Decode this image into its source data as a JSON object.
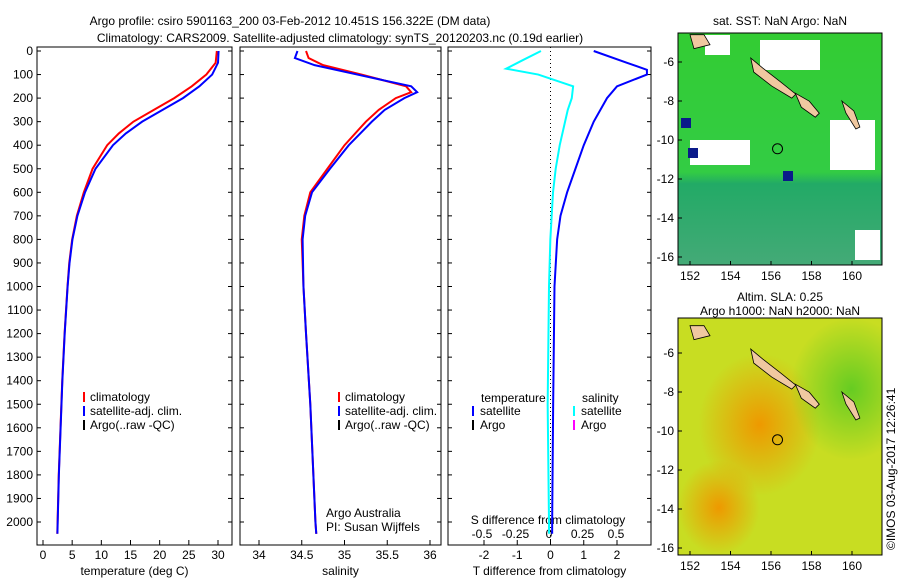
{
  "title": {
    "line1": "Argo profile: csiro 5901163_200 03-Feb-2012 10.451S 156.322E (DM data)",
    "line2": "Climatology: CARS2009. Satellite-adjusted climatology: synTS_20120203.nc (0.19d earlier)"
  },
  "colors": {
    "climatology": "#ff0000",
    "satellite": "#0000ff",
    "argo": "#000000",
    "sal_satellite": "#00ffff",
    "sal_argo": "#ff00ff"
  },
  "credit": {
    "institution": "Argo Australia",
    "pi": "PI: Susan Wijffels"
  },
  "stamp": "©IMOS 03-Aug-2017 12:26:41",
  "chart_data": [
    {
      "type": "line",
      "name": "temperature",
      "xlabel": "temperature (deg C)",
      "xlim": [
        -1,
        31
      ],
      "ylim": [
        0,
        2050
      ],
      "yticks": [
        0,
        100,
        200,
        300,
        400,
        500,
        600,
        700,
        800,
        900,
        1000,
        1100,
        1200,
        1300,
        1400,
        1500,
        1600,
        1700,
        1800,
        1900,
        2000
      ],
      "xticks": [
        0,
        5,
        10,
        15,
        20,
        25,
        30
      ],
      "legend": [
        "climatology",
        "satellite-adj. clim.",
        "Argo(..raw -QC)"
      ],
      "series": [
        {
          "name": "climatology",
          "depth": [
            0,
            50,
            100,
            150,
            200,
            250,
            300,
            350,
            400,
            500,
            600,
            700,
            800,
            900,
            1000,
            1200,
            1400,
            1600,
            1800,
            2000,
            2050
          ],
          "values": [
            29.8,
            29.6,
            28,
            25.5,
            22.5,
            19,
            15.5,
            13,
            11,
            8.5,
            7,
            5.8,
            5,
            4.5,
            4.2,
            3.7,
            3.3,
            3.0,
            2.7,
            2.5,
            2.45
          ]
        },
        {
          "name": "satellite-adj. clim.",
          "depth": [
            0,
            50,
            100,
            150,
            200,
            250,
            300,
            350,
            400,
            500,
            600,
            700,
            800,
            900,
            1000,
            1200,
            1400,
            1600,
            1800,
            2000,
            2050
          ],
          "values": [
            30.1,
            30,
            29,
            26.8,
            24,
            20.5,
            17,
            14.2,
            12,
            9,
            7.2,
            5.9,
            5.05,
            4.55,
            4.22,
            3.72,
            3.32,
            3.02,
            2.72,
            2.52,
            2.47
          ]
        }
      ]
    },
    {
      "type": "line",
      "name": "salinity",
      "xlabel": "salinity",
      "xlim": [
        33.7,
        36.1
      ],
      "ylim": [
        0,
        2050
      ],
      "xticks": [
        34,
        34.5,
        35,
        35.5,
        36
      ],
      "legend": [
        "climatology",
        "satellite-adj. clim.",
        "Argo(..raw -QC)"
      ],
      "series": [
        {
          "name": "climatology",
          "depth": [
            0,
            30,
            60,
            100,
            150,
            175,
            200,
            250,
            300,
            400,
            500,
            600,
            700,
            800,
            1000,
            1200,
            1500,
            2000,
            2050
          ],
          "values": [
            34.55,
            34.58,
            34.75,
            35.2,
            35.72,
            35.78,
            35.6,
            35.4,
            35.25,
            35.0,
            34.8,
            34.6,
            34.53,
            34.5,
            34.52,
            34.55,
            34.6,
            34.66,
            34.67
          ]
        },
        {
          "name": "satellite-adj. clim.",
          "depth": [
            0,
            30,
            60,
            100,
            150,
            175,
            200,
            250,
            300,
            400,
            500,
            600,
            700,
            800,
            1000,
            1200,
            1500,
            2000,
            2050
          ],
          "values": [
            34.45,
            34.42,
            34.65,
            35.15,
            35.78,
            35.85,
            35.7,
            35.47,
            35.32,
            35.05,
            34.83,
            34.62,
            34.54,
            34.51,
            34.52,
            34.55,
            34.6,
            34.66,
            34.67
          ]
        }
      ]
    },
    {
      "type": "line",
      "name": "difference",
      "xlabel": "T difference from climatology",
      "x2label": "S difference from climatology",
      "xlim": [
        -3,
        3
      ],
      "ylim": [
        0,
        2050
      ],
      "xticks": [
        -2,
        -1,
        0,
        1,
        2
      ],
      "x2ticks": [
        -0.5,
        -0.25,
        0,
        0.25,
        0.5
      ],
      "legend": {
        "temperature": "temperature",
        "salinity": "salinity",
        "satellite": "satellite",
        "argo": "Argo"
      },
      "series": [
        {
          "name": "temperature satellite",
          "depth": [
            0,
            50,
            80,
            100,
            150,
            200,
            250,
            300,
            400,
            500,
            600,
            700,
            800,
            1000,
            1500,
            2000,
            2050
          ],
          "values": [
            1.3,
            2.3,
            2.9,
            2.9,
            2.0,
            1.7,
            1.5,
            1.3,
            1.0,
            0.75,
            0.5,
            0.3,
            0.2,
            0.12,
            0.08,
            0.05,
            0.05
          ]
        },
        {
          "name": "salinity satellite",
          "depth": [
            0,
            40,
            75,
            100,
            150,
            200,
            250,
            300,
            400,
            500,
            600,
            800,
            1000,
            1500,
            2000,
            2050
          ],
          "values": [
            -0.06,
            -0.2,
            -0.32,
            -0.08,
            0.18,
            0.17,
            0.14,
            0.12,
            0.08,
            0.05,
            0.03,
            0.01,
            0.0,
            -0.01,
            0.0,
            0.0
          ]
        }
      ]
    }
  ],
  "maps": [
    {
      "title": "sat. SST: NaN Argo: NaN",
      "lon_ticks": [
        152,
        154,
        156,
        158,
        160
      ],
      "lat_ticks": [
        -6,
        -8,
        -10,
        -12,
        -14,
        -16
      ]
    },
    {
      "title1": "Altim. SLA: 0.25",
      "title2": "Argo h1000: NaN h2000: NaN",
      "lon_ticks": [
        152,
        154,
        156,
        158,
        160
      ],
      "lat_ticks": [
        -6,
        -8,
        -10,
        -12,
        -14,
        -16
      ]
    }
  ],
  "argo_position": {
    "lon": 156.322,
    "lat": -10.451
  }
}
